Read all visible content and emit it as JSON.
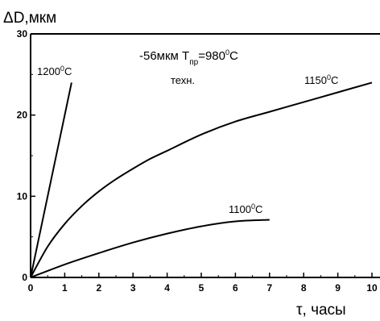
{
  "chart_data": {
    "type": "line",
    "ylabel": "ΔD,мкм",
    "xlabel": "τ, часы",
    "xlim": [
      0,
      10
    ],
    "ylim": [
      0,
      30
    ],
    "x_ticks": [
      0,
      1,
      2,
      3,
      4,
      5,
      6,
      7,
      8,
      9,
      10
    ],
    "y_ticks": [
      0,
      10,
      20,
      30
    ],
    "grid": false,
    "legend": "none",
    "annotations": {
      "line1_prefix": "-56мкм  T",
      "line1_sub": "пр",
      "line1_value": "=980",
      "line1_sup": "0",
      "line1_unit": "C",
      "line2": "техн."
    },
    "series": [
      {
        "name": "1200⁰C",
        "label_main": "1200",
        "label_sup": "0",
        "label_unit": "C",
        "x": [
          0,
          0.3,
          0.6,
          0.9,
          1.2
        ],
        "y": [
          0,
          6,
          12,
          18,
          24
        ]
      },
      {
        "name": "1150⁰C",
        "label_main": "1150",
        "label_sup": "0",
        "label_unit": "C",
        "x": [
          0,
          0.5,
          1,
          1.5,
          2,
          2.5,
          3,
          3.5,
          4,
          5,
          6,
          7,
          8,
          9,
          10
        ],
        "y": [
          0,
          3.8,
          6.6,
          8.8,
          10.6,
          12.1,
          13.4,
          14.6,
          15.6,
          17.6,
          19.2,
          20.4,
          21.6,
          22.8,
          24
        ]
      },
      {
        "name": "1100⁰C",
        "label_main": "1100",
        "label_sup": "0",
        "label_unit": "C",
        "x": [
          0,
          1,
          2,
          3,
          4,
          5,
          6,
          7
        ],
        "y": [
          0,
          1.6,
          3.0,
          4.3,
          5.4,
          6.3,
          6.9,
          7.1
        ]
      }
    ]
  }
}
